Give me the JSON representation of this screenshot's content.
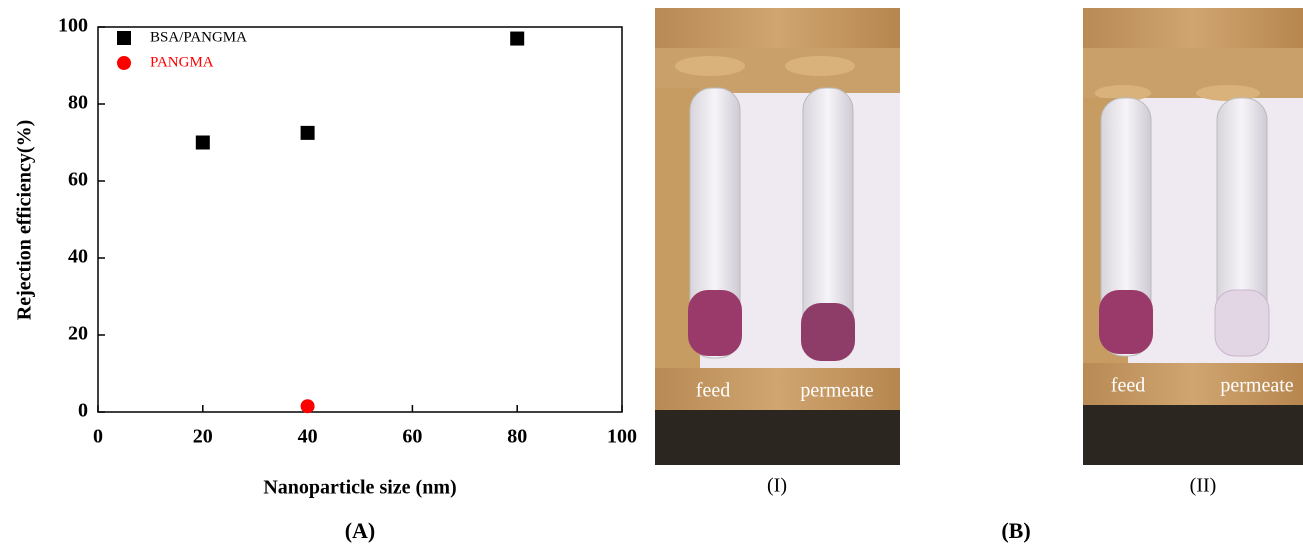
{
  "chart_data": {
    "type": "scatter",
    "x_label": "Nanoparticle size (nm)",
    "y_label": "Rejection efficiency(%)",
    "xlim": [
      0,
      100
    ],
    "xticks": [
      0,
      20,
      40,
      60,
      80,
      100
    ],
    "ylim": [
      0,
      100
    ],
    "yticks": [
      0,
      20,
      40,
      60,
      80,
      100
    ],
    "legend": "upper-left",
    "series": [
      {
        "name": "BSA/PANGMA",
        "color": "#000000",
        "marker": "square",
        "x": [
          20,
          40,
          80
        ],
        "values": [
          70,
          72.5,
          97
        ]
      },
      {
        "name": "PANGMA",
        "color": "#ff0000",
        "marker": "circle",
        "x": [
          40
        ],
        "values": [
          1.5
        ]
      }
    ]
  },
  "panel_a_label": "(A)",
  "panel_b_label": "(B)",
  "photos": [
    {
      "caption": "(I)",
      "left_label": "feed",
      "right_label": "permeate"
    },
    {
      "caption": "(II)",
      "left_label": "feed",
      "right_label": "permeate"
    }
  ]
}
